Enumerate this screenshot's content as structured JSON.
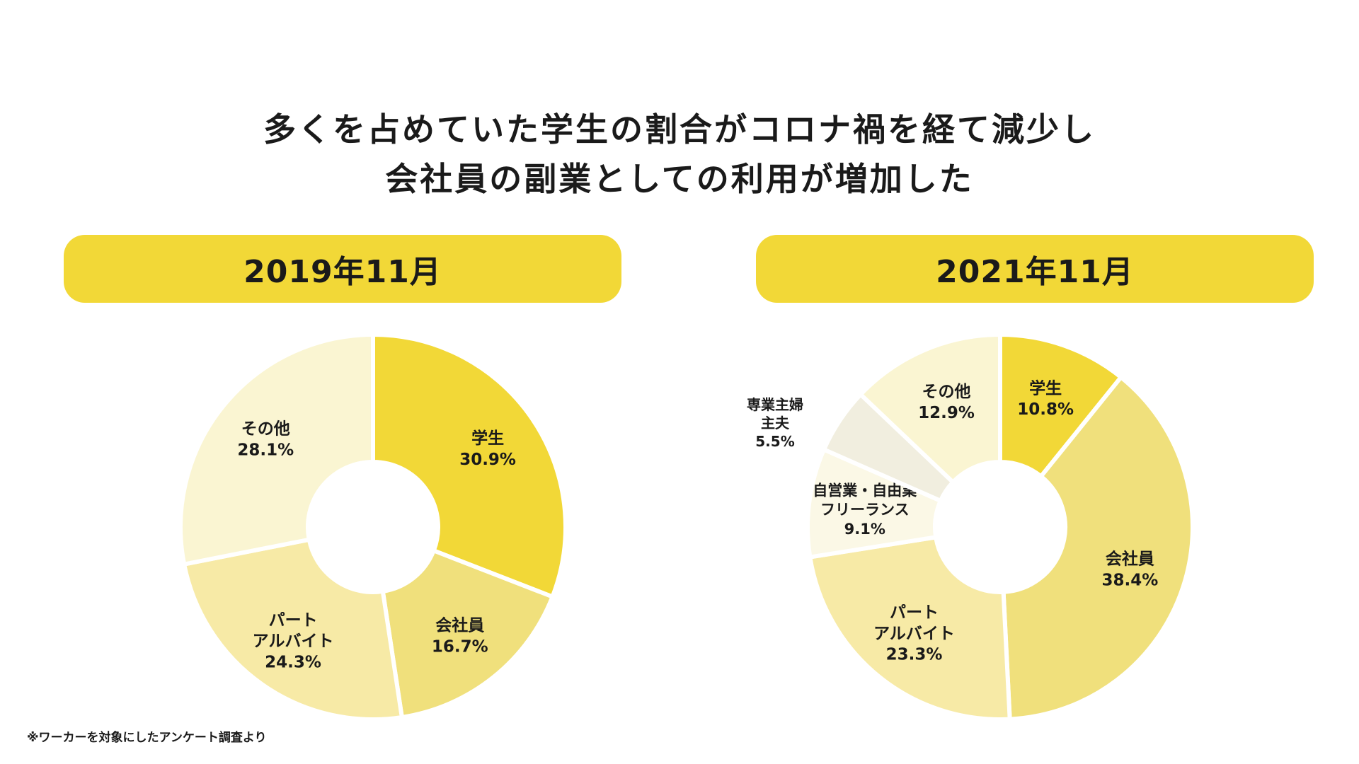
{
  "headline": {
    "line1": "多くを占めていた学生の割合がコロナ禍を経て減少し",
    "line2": "会社員の副業としての利用が増加した"
  },
  "footnote": "※ワーカーを対象にしたアンケート調査より",
  "chart_data": [
    {
      "type": "pie",
      "donut": true,
      "title": "2019年11月",
      "slices": [
        {
          "label": [
            "学生"
          ],
          "value": 30.9,
          "value_label": "30.9%",
          "color": "#f2d837"
        },
        {
          "label": [
            "会社員"
          ],
          "value": 16.7,
          "value_label": "16.7%",
          "color": "#f0e07c"
        },
        {
          "label": [
            "パート",
            "アルバイト"
          ],
          "value": 24.3,
          "value_label": "24.3%",
          "color": "#f7eaa6"
        },
        {
          "label": [
            "その他"
          ],
          "value": 28.1,
          "value_label": "28.1%",
          "color": "#faf5d2"
        }
      ]
    },
    {
      "type": "pie",
      "donut": true,
      "title": "2021年11月",
      "slices": [
        {
          "label": [
            "学生"
          ],
          "value": 10.8,
          "value_label": "10.8%",
          "color": "#f2d837"
        },
        {
          "label": [
            "会社員"
          ],
          "value": 38.4,
          "value_label": "38.4%",
          "color": "#f0e07c"
        },
        {
          "label": [
            "パート",
            "アルバイト"
          ],
          "value": 23.3,
          "value_label": "23.3%",
          "color": "#f7eaa6"
        },
        {
          "label": [
            "自営業・自由業",
            "フリーランス"
          ],
          "value": 9.1,
          "value_label": "9.1%",
          "color": "#fbf8e6"
        },
        {
          "label": [
            "専業主婦",
            "主夫"
          ],
          "value": 5.5,
          "value_label": "5.5%",
          "color": "#f1eedf"
        },
        {
          "label": [
            "その他"
          ],
          "value": 12.9,
          "value_label": "12.9%",
          "color": "#faf5d2"
        }
      ]
    }
  ]
}
